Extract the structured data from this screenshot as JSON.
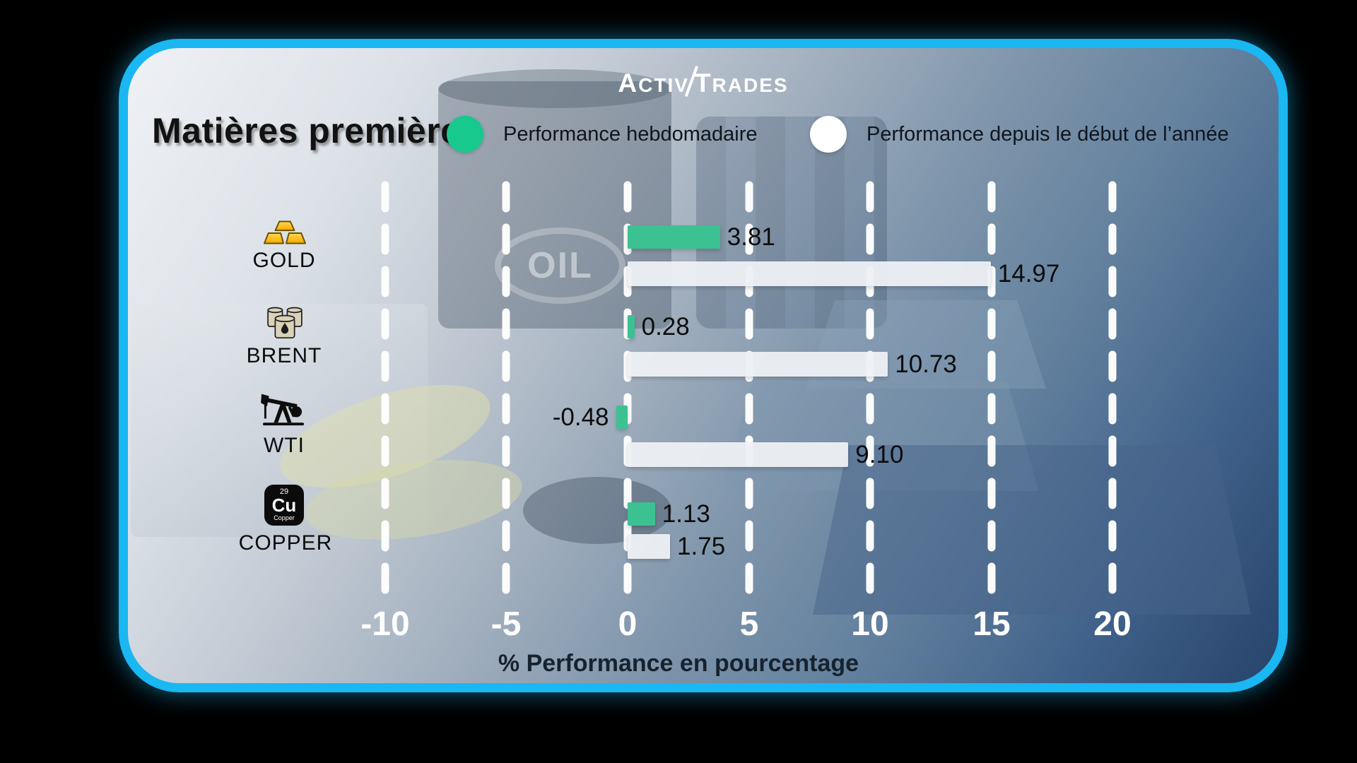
{
  "brand": {
    "logo_parts": [
      "A",
      "CTIV",
      "T",
      "RADES"
    ]
  },
  "header": {
    "title": "Matières premières"
  },
  "legend": [
    {
      "label": "Performance hebdomadaire",
      "color": "#17c98c"
    },
    {
      "label": "Performance depuis le début de l’année",
      "color": "#ffffff"
    }
  ],
  "watermark": "OIL",
  "rows": [
    {
      "name": "GOLD",
      "icon": "gold-bars-icon",
      "weekly_label": "3.81",
      "ytd_label": "14.97"
    },
    {
      "name": "BRENT",
      "icon": "oil-barrels-icon",
      "weekly_label": "0.28",
      "ytd_label": "10.73"
    },
    {
      "name": "WTI",
      "icon": "pumpjack-icon",
      "weekly_label": "-0.48",
      "ytd_label": "9.10"
    },
    {
      "name": "COPPER",
      "icon": "copper-element-icon",
      "weekly_label": "1.13",
      "ytd_label": "1.75",
      "tile": {
        "number": "29",
        "symbol": "Cu",
        "label": "Copper"
      }
    }
  ],
  "chart_data": {
    "type": "bar",
    "orientation": "horizontal",
    "title": "Matières premières",
    "categories": [
      "GOLD",
      "BRENT",
      "WTI",
      "COPPER"
    ],
    "series": [
      {
        "name": "Performance hebdomadaire",
        "color": "#3cc192",
        "values": [
          3.81,
          0.28,
          -0.48,
          1.13
        ]
      },
      {
        "name": "Performance depuis le début de l’année",
        "color": "#eef1f5",
        "values": [
          14.97,
          10.73,
          9.1,
          1.75
        ]
      }
    ],
    "xlabel": "% Performance en pourcentage",
    "x_ticks": [
      -10,
      -5,
      0,
      5,
      10,
      15,
      20
    ],
    "x_tick_labels": [
      "-10",
      "-5",
      "0",
      "5",
      "10",
      "15",
      "20"
    ],
    "xlim": [
      -12.4,
      22.6
    ],
    "grid": "vertical-dashed-white",
    "legend_position": "top",
    "value_labels": true,
    "accent_border_color": "#1ab7f2"
  }
}
